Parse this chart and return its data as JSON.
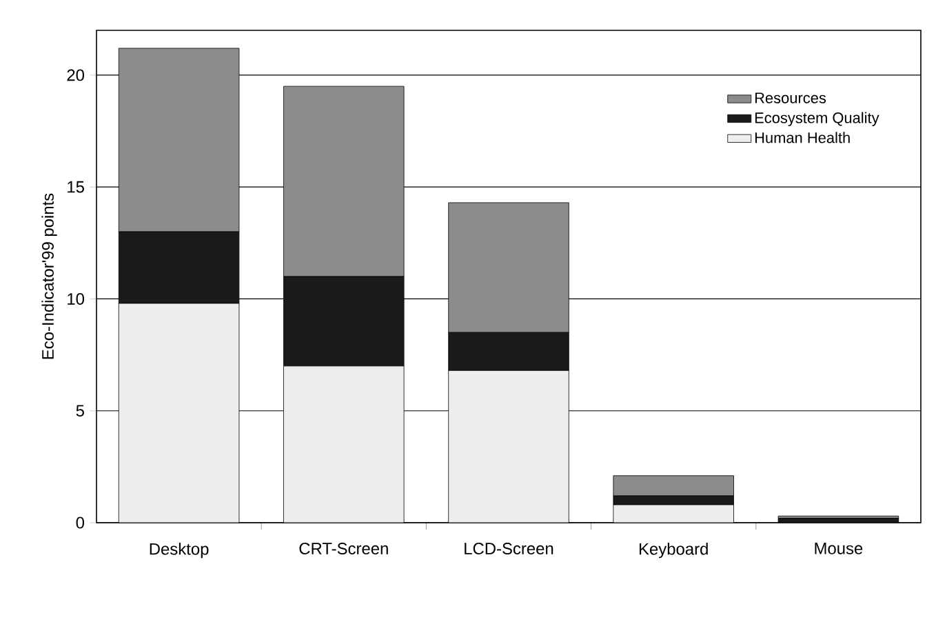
{
  "chart_data": {
    "type": "bar",
    "stacked": true,
    "ylabel": "Eco-Indicator'99 points",
    "categories": [
      "Desktop",
      "CRT-Screen",
      "LCD-Screen",
      "Keyboard",
      "Mouse"
    ],
    "series": [
      {
        "name": "Human Health",
        "color": "#eeeeee",
        "values": [
          9.8,
          7.0,
          6.8,
          0.8,
          null
        ]
      },
      {
        "name": "Ecosystem Quality",
        "color": "#1a1a1a",
        "values": [
          3.2,
          4.0,
          1.7,
          0.4,
          0.2
        ]
      },
      {
        "name": "Resources",
        "color": "#8c8c8c",
        "values": [
          8.2,
          8.5,
          5.8,
          0.9,
          0.1
        ]
      }
    ],
    "ylim": [
      0,
      22
    ],
    "yticks": [
      0,
      5,
      10,
      15,
      20
    ],
    "grid": "y",
    "legend": "top right"
  }
}
